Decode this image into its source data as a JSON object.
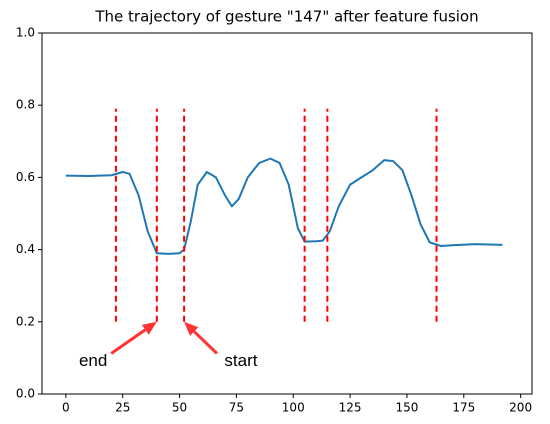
{
  "chart_data": {
    "type": "line",
    "title": "The trajectory of gesture \"147\" after feature fusion",
    "x": [
      0,
      10,
      20,
      25,
      28,
      32,
      36,
      40,
      45,
      50,
      52,
      55,
      58,
      62,
      66,
      70,
      73,
      76,
      80,
      85,
      90,
      94,
      98,
      102,
      105,
      110,
      113,
      116,
      120,
      125,
      130,
      135,
      140,
      144,
      148,
      152,
      156,
      160,
      165,
      170,
      180,
      192
    ],
    "values": [
      0.605,
      0.604,
      0.606,
      0.615,
      0.61,
      0.55,
      0.45,
      0.39,
      0.388,
      0.39,
      0.4,
      0.48,
      0.58,
      0.615,
      0.6,
      0.55,
      0.52,
      0.54,
      0.6,
      0.64,
      0.652,
      0.64,
      0.58,
      0.46,
      0.422,
      0.423,
      0.425,
      0.45,
      0.52,
      0.58,
      0.6,
      0.62,
      0.648,
      0.645,
      0.62,
      0.55,
      0.47,
      0.42,
      0.41,
      0.412,
      0.415,
      0.413
    ],
    "color": "#1f78b4",
    "vlines": {
      "x": [
        22,
        40,
        52,
        105,
        115,
        163
      ],
      "ymin": 0.2,
      "ymax": 0.79,
      "color": "#ff0000"
    },
    "annotations": [
      {
        "text": "end",
        "xy": [
          40,
          0.2
        ],
        "xytext": [
          12,
          0.09
        ],
        "color": "#ff3333"
      },
      {
        "text": "start",
        "xy": [
          52,
          0.2
        ],
        "xytext": [
          77,
          0.09
        ],
        "color": "#ff3333"
      }
    ],
    "xlim": [
      -10.5,
      205
    ],
    "ylim": [
      0,
      1
    ],
    "xticks": [
      0,
      25,
      50,
      75,
      100,
      125,
      150,
      175,
      200
    ],
    "yticks": [
      {
        "value": 0,
        "label": "0.0"
      },
      0.2,
      0.4,
      0.6,
      0.8,
      {
        "value": 1,
        "label": "1.0"
      }
    ]
  }
}
